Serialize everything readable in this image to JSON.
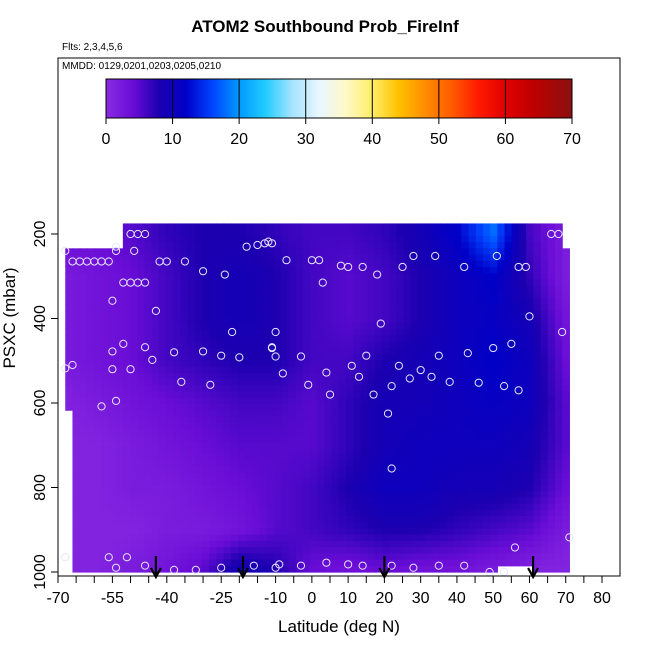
{
  "chart_data": {
    "type": "heatmap",
    "title": "ATOM2 Southbound Prob_FireInf",
    "annotations": [
      "Flts: 2,3,4,5,6",
      "MMDD: 0129,0201,0203,0205,0210"
    ],
    "xlabel": "Latitude (deg N)",
    "ylabel": "PSXC (mbar)",
    "xlim": [
      -70,
      85
    ],
    "ylim": [
      1010,
      50
    ],
    "x_ticks": [
      -70,
      -55,
      -40,
      -25,
      -10,
      0,
      10,
      20,
      30,
      40,
      50,
      60,
      70,
      80
    ],
    "x_tick_labels": [
      "-70",
      "-55",
      "-40",
      "-25",
      "-10",
      "0",
      "10",
      "20",
      "30",
      "40",
      "50",
      "60",
      "70",
      "80"
    ],
    "x_minor_ticks": [
      -65,
      -60,
      -50,
      -45,
      -35,
      -30,
      -20,
      -15,
      -5,
      5,
      15,
      25,
      35,
      45,
      55,
      65,
      75,
      85
    ],
    "y_ticks": [
      200,
      400,
      600,
      800,
      1000
    ],
    "y_tick_labels": [
      "200",
      "400",
      "600",
      "800",
      "1000"
    ],
    "colorbar": {
      "min": 0,
      "max": 70,
      "ticks": [
        0,
        10,
        20,
        30,
        40,
        50,
        60,
        70
      ],
      "tick_labels": [
        "0",
        "10",
        "20",
        "30",
        "40",
        "50",
        "60",
        "70"
      ],
      "stops": [
        {
          "v": 0,
          "color": "#8a2be2"
        },
        {
          "v": 4,
          "color": "#6a0dd6"
        },
        {
          "v": 8,
          "color": "#1c00b0"
        },
        {
          "v": 12,
          "color": "#0000c8"
        },
        {
          "v": 16,
          "color": "#0044ff"
        },
        {
          "v": 20,
          "color": "#0099ff"
        },
        {
          "v": 24,
          "color": "#22ccff"
        },
        {
          "v": 28,
          "color": "#a6e4ff"
        },
        {
          "v": 32,
          "color": "#e8f6ff"
        },
        {
          "v": 36,
          "color": "#fff8c8"
        },
        {
          "v": 40,
          "color": "#ffee66"
        },
        {
          "v": 44,
          "color": "#ffc000"
        },
        {
          "v": 48,
          "color": "#ff8c00"
        },
        {
          "v": 52,
          "color": "#ff5a00"
        },
        {
          "v": 56,
          "color": "#ff1a00"
        },
        {
          "v": 60,
          "color": "#e00000"
        },
        {
          "v": 64,
          "color": "#c00000"
        },
        {
          "v": 70,
          "color": "#8b1010"
        }
      ]
    },
    "field": {
      "x": [
        -70,
        -60,
        -50,
        -40,
        -30,
        -20,
        -10,
        0,
        10,
        20,
        30,
        40,
        50,
        60,
        70
      ],
      "y": [
        200,
        300,
        400,
        500,
        600,
        700,
        800,
        900,
        1000
      ],
      "z": [
        [
          4,
          4,
          5,
          7,
          8,
          8,
          7,
          6,
          6,
          7,
          9,
          12,
          18,
          6,
          2
        ],
        [
          2,
          3,
          4,
          6,
          8,
          9,
          8,
          6,
          5,
          6,
          8,
          10,
          12,
          7,
          2
        ],
        [
          2,
          3,
          4,
          6,
          8,
          9,
          8,
          6,
          5,
          6,
          8,
          10,
          11,
          9,
          3
        ],
        [
          2,
          3,
          4,
          6,
          7,
          8,
          8,
          6,
          6,
          8,
          9,
          10,
          12,
          10,
          4
        ],
        [
          1,
          2,
          3,
          4,
          5,
          6,
          6,
          5,
          7,
          9,
          9,
          10,
          11,
          10,
          5
        ],
        [
          1,
          1,
          2,
          3,
          4,
          5,
          5,
          5,
          7,
          9,
          10,
          10,
          10,
          9,
          5
        ],
        [
          1,
          1,
          2,
          2,
          3,
          4,
          5,
          6,
          8,
          10,
          10,
          9,
          9,
          8,
          4
        ],
        [
          1,
          1,
          1,
          2,
          2,
          3,
          5,
          6,
          7,
          8,
          8,
          7,
          6,
          5,
          2
        ],
        [
          1,
          1,
          2,
          3,
          5,
          10,
          8,
          4,
          3,
          4,
          3,
          3,
          2,
          1,
          1
        ]
      ]
    },
    "points": [
      {
        "x": -68,
        "y": 240
      },
      {
        "x": -66,
        "y": 265
      },
      {
        "x": -64,
        "y": 265
      },
      {
        "x": -62,
        "y": 265
      },
      {
        "x": -60,
        "y": 265
      },
      {
        "x": -58,
        "y": 265
      },
      {
        "x": -56,
        "y": 265
      },
      {
        "x": -54,
        "y": 230
      },
      {
        "x": -54,
        "y": 240
      },
      {
        "x": -50,
        "y": 200
      },
      {
        "x": -48,
        "y": 200
      },
      {
        "x": -46,
        "y": 200
      },
      {
        "x": -49,
        "y": 240
      },
      {
        "x": -52,
        "y": 315
      },
      {
        "x": -50,
        "y": 315
      },
      {
        "x": -48,
        "y": 315
      },
      {
        "x": -46,
        "y": 315
      },
      {
        "x": -42,
        "y": 265
      },
      {
        "x": -40,
        "y": 265
      },
      {
        "x": -35,
        "y": 265
      },
      {
        "x": -30,
        "y": 288
      },
      {
        "x": -24,
        "y": 296
      },
      {
        "x": -18,
        "y": 230
      },
      {
        "x": -15,
        "y": 226
      },
      {
        "x": -13,
        "y": 222
      },
      {
        "x": -12,
        "y": 218
      },
      {
        "x": -11,
        "y": 222
      },
      {
        "x": -7,
        "y": 262
      },
      {
        "x": 0,
        "y": 262
      },
      {
        "x": 2,
        "y": 262
      },
      {
        "x": 3,
        "y": 315
      },
      {
        "x": 8,
        "y": 275
      },
      {
        "x": 10,
        "y": 278
      },
      {
        "x": 14,
        "y": 278
      },
      {
        "x": 18,
        "y": 296
      },
      {
        "x": 25,
        "y": 278
      },
      {
        "x": 28,
        "y": 252
      },
      {
        "x": 34,
        "y": 252
      },
      {
        "x": 42,
        "y": 278
      },
      {
        "x": 51,
        "y": 252
      },
      {
        "x": 57,
        "y": 278
      },
      {
        "x": 59,
        "y": 278
      },
      {
        "x": 66,
        "y": 200
      },
      {
        "x": 68,
        "y": 200
      },
      {
        "x": -55,
        "y": 358
      },
      {
        "x": -43,
        "y": 382
      },
      {
        "x": -22,
        "y": 432
      },
      {
        "x": -10,
        "y": 432
      },
      {
        "x": 19,
        "y": 412
      },
      {
        "x": 60,
        "y": 395
      },
      {
        "x": 69,
        "y": 432
      },
      {
        "x": -55,
        "y": 478
      },
      {
        "x": -52,
        "y": 460
      },
      {
        "x": -46,
        "y": 468
      },
      {
        "x": -44,
        "y": 498
      },
      {
        "x": -38,
        "y": 480
      },
      {
        "x": -30,
        "y": 478
      },
      {
        "x": -25,
        "y": 488
      },
      {
        "x": -20,
        "y": 492
      },
      {
        "x": -11,
        "y": 470
      },
      {
        "x": -11,
        "y": 468
      },
      {
        "x": -10,
        "y": 490
      },
      {
        "x": -3,
        "y": 490
      },
      {
        "x": 15,
        "y": 488
      },
      {
        "x": 35,
        "y": 488
      },
      {
        "x": 43,
        "y": 482
      },
      {
        "x": 50,
        "y": 470
      },
      {
        "x": 55,
        "y": 460
      },
      {
        "x": -66,
        "y": 510
      },
      {
        "x": -68,
        "y": 518
      },
      {
        "x": -55,
        "y": 520
      },
      {
        "x": -50,
        "y": 520
      },
      {
        "x": -8,
        "y": 530
      },
      {
        "x": 4,
        "y": 528
      },
      {
        "x": 11,
        "y": 512
      },
      {
        "x": 13,
        "y": 538
      },
      {
        "x": 24,
        "y": 512
      },
      {
        "x": 27,
        "y": 542
      },
      {
        "x": 30,
        "y": 522
      },
      {
        "x": 33,
        "y": 538
      },
      {
        "x": -36,
        "y": 550
      },
      {
        "x": -28,
        "y": 557
      },
      {
        "x": -1,
        "y": 557
      },
      {
        "x": 22,
        "y": 560
      },
      {
        "x": 38,
        "y": 550
      },
      {
        "x": 46,
        "y": 552
      },
      {
        "x": 53,
        "y": 560
      },
      {
        "x": 57,
        "y": 570
      },
      {
        "x": 5,
        "y": 580
      },
      {
        "x": 17,
        "y": 580
      },
      {
        "x": -54,
        "y": 595
      },
      {
        "x": -58,
        "y": 608
      },
      {
        "x": 21,
        "y": 625
      },
      {
        "x": 22,
        "y": 755
      },
      {
        "x": 56,
        "y": 942
      },
      {
        "x": 71,
        "y": 918
      },
      {
        "x": -68,
        "y": 965
      },
      {
        "x": -56,
        "y": 965
      },
      {
        "x": -54,
        "y": 990
      },
      {
        "x": -51,
        "y": 965
      },
      {
        "x": -46,
        "y": 985
      },
      {
        "x": -38,
        "y": 995
      },
      {
        "x": -32,
        "y": 995
      },
      {
        "x": -25,
        "y": 990
      },
      {
        "x": -16,
        "y": 985
      },
      {
        "x": -10,
        "y": 990
      },
      {
        "x": -9,
        "y": 982
      },
      {
        "x": -3,
        "y": 985
      },
      {
        "x": 4,
        "y": 978
      },
      {
        "x": 10,
        "y": 982
      },
      {
        "x": 14,
        "y": 985
      },
      {
        "x": 22,
        "y": 985
      },
      {
        "x": 28,
        "y": 990
      },
      {
        "x": 35,
        "y": 985
      },
      {
        "x": 42,
        "y": 985
      },
      {
        "x": 49,
        "y": 1000
      },
      {
        "x": 53,
        "y": 1000
      }
    ],
    "flight_markers_lat": [
      -43,
      -19,
      20,
      61
    ]
  }
}
